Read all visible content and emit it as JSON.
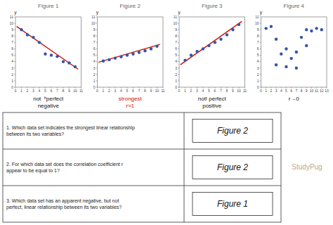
{
  "chart_data": [
    {
      "type": "scatter",
      "title": "Figure 1",
      "y_label": "y",
      "xlim": [
        0,
        11
      ],
      "xticks": [
        0,
        1,
        2,
        3,
        4,
        5,
        6,
        7,
        8,
        9,
        10,
        11
      ],
      "ylim": [
        0,
        11
      ],
      "yticks": [
        0,
        1,
        2,
        3,
        4,
        5,
        6,
        7,
        8,
        9,
        10,
        11
      ],
      "series": [
        {
          "type": "scatter",
          "color": "#3355aa",
          "x": [
            1,
            2,
            3,
            4,
            5,
            6,
            7,
            8,
            9,
            10
          ],
          "values": [
            9,
            8.2,
            7.8,
            7.0,
            5.2,
            5.0,
            4.8,
            4.0,
            3.8,
            3.2
          ]
        },
        {
          "type": "line",
          "color": "#cc1100",
          "x": [
            0.2,
            10.5
          ],
          "values": [
            9.5,
            2.8
          ]
        }
      ],
      "annotations": [
        {
          "text": "not  ʰperfect",
          "color": "#111111"
        },
        {
          "text": "negative",
          "color": "#111111"
        }
      ]
    },
    {
      "type": "scatter",
      "title": "Figure 2",
      "y_label": "y",
      "xlim": [
        0,
        11
      ],
      "xticks": [
        0,
        1,
        2,
        3,
        4,
        5,
        6,
        7,
        8,
        9,
        10,
        11
      ],
      "ylim": [
        0,
        11
      ],
      "yticks": [
        0,
        1,
        2,
        3,
        4,
        5,
        6,
        7,
        8,
        9,
        10,
        11
      ],
      "series": [
        {
          "type": "scatter",
          "color": "#3355aa",
          "x": [
            1,
            2,
            3,
            4,
            5,
            6,
            7,
            8,
            9,
            10
          ],
          "values": [
            4.1,
            4.3,
            4.55,
            4.75,
            5.0,
            5.2,
            5.45,
            5.7,
            6.0,
            6.4
          ]
        },
        {
          "type": "line",
          "color": "#cc1100",
          "x": [
            0.2,
            10.5
          ],
          "values": [
            3.9,
            6.7
          ]
        }
      ],
      "annotations": [
        {
          "text": "strongest",
          "color": "#cc1100"
        },
        {
          "text": "r≈1",
          "color": "#cc1100"
        }
      ]
    },
    {
      "type": "scatter",
      "title": "Figure 3",
      "y_label": "y",
      "xlim": [
        0,
        11
      ],
      "xticks": [
        0,
        1,
        2,
        3,
        4,
        5,
        6,
        7,
        8,
        9,
        10,
        11
      ],
      "ylim": [
        0,
        11
      ],
      "yticks": [
        0,
        1,
        2,
        3,
        4,
        5,
        6,
        7,
        8,
        9,
        10,
        11
      ],
      "series": [
        {
          "type": "scatter",
          "color": "#3355aa",
          "x": [
            1,
            2,
            3,
            4,
            5,
            6,
            7,
            8,
            9,
            10
          ],
          "values": [
            4.2,
            5.0,
            5.6,
            6.0,
            6.5,
            7.0,
            7.5,
            8.2,
            9.0,
            9.8
          ]
        },
        {
          "type": "line",
          "color": "#cc1100",
          "x": [
            0.2,
            10.5
          ],
          "values": [
            3.5,
            10.3
          ]
        }
      ],
      "annotations": [
        {
          "text": "not! perfect",
          "color": "#111111"
        },
        {
          "text": "positive",
          "color": "#111111"
        }
      ]
    },
    {
      "type": "scatter",
      "title": "Figure 4",
      "y_label": "y",
      "xlim": [
        0,
        13
      ],
      "xticks": [
        0,
        1,
        2,
        3,
        4,
        5,
        6,
        7,
        8,
        9,
        10,
        11,
        12,
        13
      ],
      "ylim": [
        0,
        11
      ],
      "yticks": [
        0,
        1,
        2,
        3,
        4,
        5,
        6,
        7,
        8,
        9,
        10,
        11
      ],
      "series": [
        {
          "type": "scatter",
          "color": "#3355aa",
          "x": [
            1,
            2,
            3,
            4,
            5,
            5,
            6,
            7,
            7,
            8,
            9,
            10,
            11,
            12,
            3,
            9
          ],
          "values": [
            9.2,
            9.5,
            7.5,
            5.2,
            6.0,
            3.2,
            4.5,
            3.0,
            5.5,
            7.8,
            9.0,
            8.8,
            9.2,
            9.0,
            3.5,
            6.5
          ]
        }
      ],
      "annotations": [
        {
          "text": "r→0",
          "color": "#111111"
        }
      ]
    }
  ],
  "table": {
    "rows": [
      {
        "question": "1. Which data set indicates the strongest linear relationship\nbetween its two variables?",
        "answer": "Figure 2"
      },
      {
        "question": "2. For which data set does the correlation coefficient r\nappear to be equal to 1?",
        "answer": "Figure 2"
      },
      {
        "question": "3. Which data set has an apparent negative, but not\nperfect, linear relationship between its two variables?",
        "answer": "Figure 1"
      }
    ]
  },
  "watermark": "StudyPug"
}
